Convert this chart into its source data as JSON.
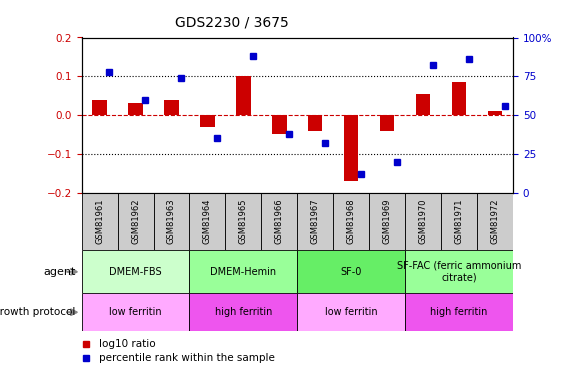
{
  "title": "GDS2230 / 3675",
  "samples": [
    "GSM81961",
    "GSM81962",
    "GSM81963",
    "GSM81964",
    "GSM81965",
    "GSM81966",
    "GSM81967",
    "GSM81968",
    "GSM81969",
    "GSM81970",
    "GSM81971",
    "GSM81972"
  ],
  "log10_ratio": [
    0.04,
    0.03,
    0.04,
    -0.03,
    0.1,
    -0.05,
    -0.04,
    -0.17,
    -0.04,
    0.055,
    0.085,
    0.01
  ],
  "percentile_rank": [
    78,
    60,
    74,
    35,
    88,
    38,
    32,
    12,
    20,
    82,
    86,
    56
  ],
  "ylim_left": [
    -0.2,
    0.2
  ],
  "ylim_right": [
    0,
    100
  ],
  "yticks_left": [
    -0.2,
    -0.1,
    0.0,
    0.1,
    0.2
  ],
  "yticks_right": [
    0,
    25,
    50,
    75,
    100
  ],
  "bar_color": "#CC0000",
  "dot_color": "#0000CC",
  "agent_groups": [
    {
      "label": "DMEM-FBS",
      "start": 0,
      "end": 3,
      "color": "#CCFFCC"
    },
    {
      "label": "DMEM-Hemin",
      "start": 3,
      "end": 6,
      "color": "#99FF99"
    },
    {
      "label": "SF-0",
      "start": 6,
      "end": 9,
      "color": "#66EE66"
    },
    {
      "label": "SF-FAC (ferric ammonium\ncitrate)",
      "start": 9,
      "end": 12,
      "color": "#99FF99"
    }
  ],
  "growth_groups": [
    {
      "label": "low ferritin",
      "start": 0,
      "end": 3,
      "color": "#FFAAFF"
    },
    {
      "label": "high ferritin",
      "start": 3,
      "end": 6,
      "color": "#EE55EE"
    },
    {
      "label": "low ferritin",
      "start": 6,
      "end": 9,
      "color": "#FFAAFF"
    },
    {
      "label": "high ferritin",
      "start": 9,
      "end": 12,
      "color": "#EE55EE"
    }
  ],
  "sample_box_color": "#CCCCCC",
  "left_label_color": "#CC0000",
  "right_label_color": "#0000CC"
}
